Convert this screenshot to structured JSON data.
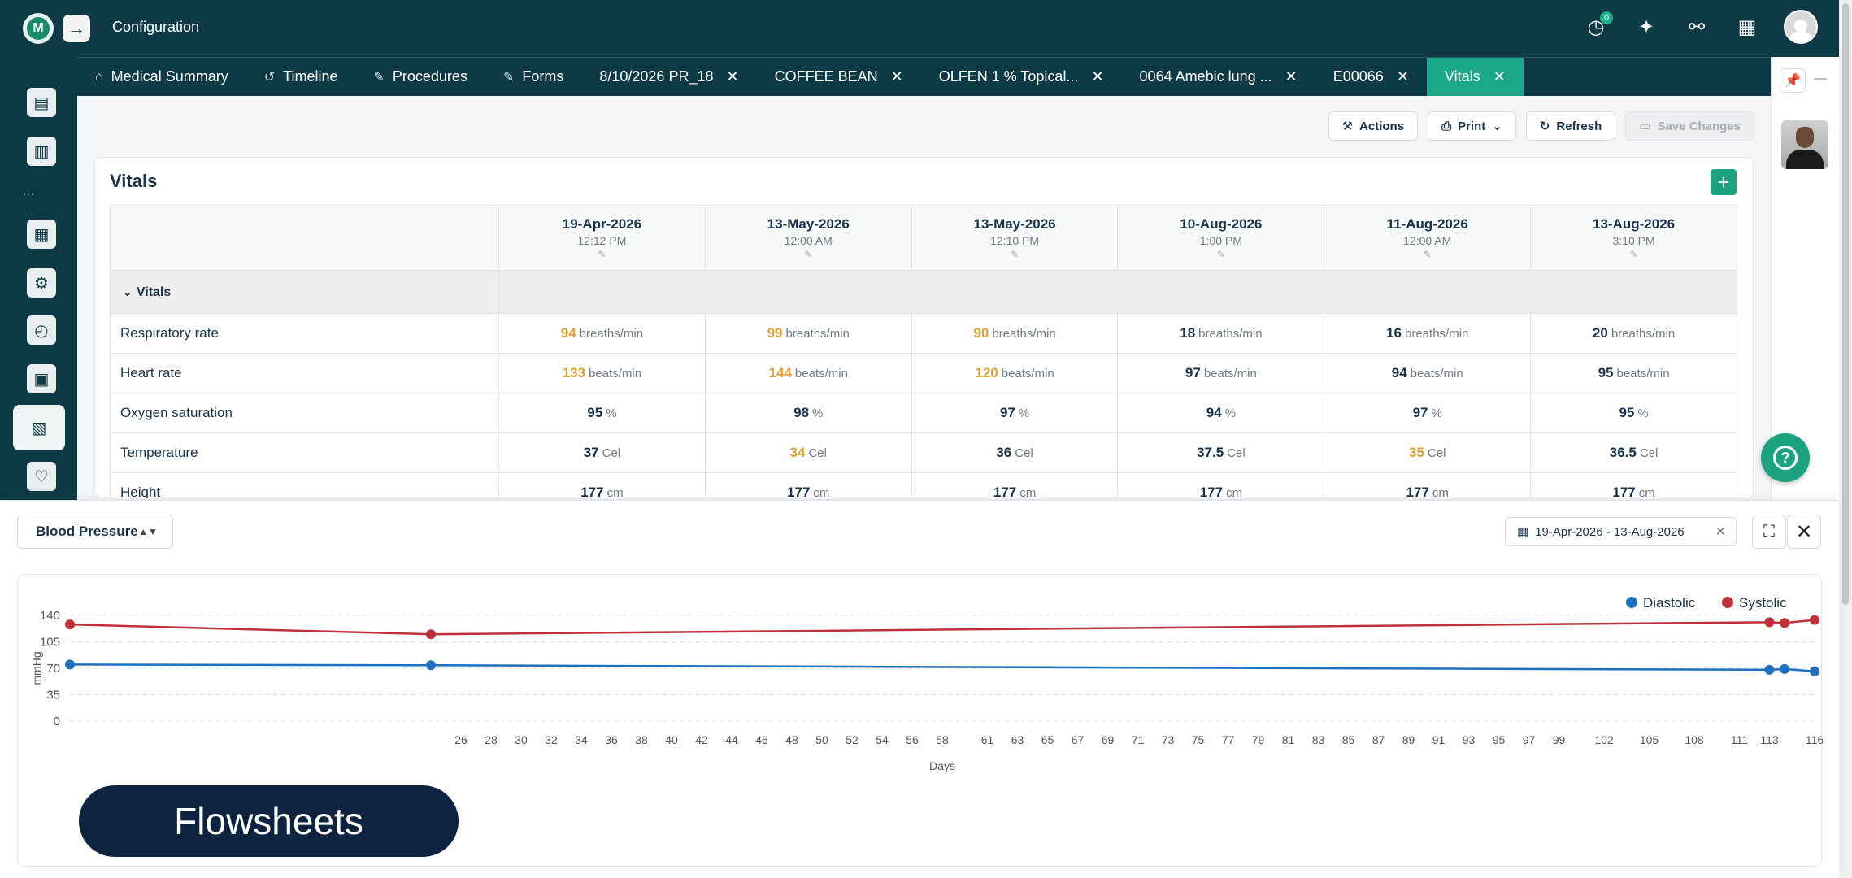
{
  "app": {
    "title": "Configuration",
    "logo_letters": "M",
    "notification_count": "0"
  },
  "tabs": [
    {
      "label": "Medical Summary",
      "icon": "home-icon",
      "glyph": "⌂",
      "closable": false,
      "active": false
    },
    {
      "label": "Timeline",
      "icon": "history-icon",
      "glyph": "↺",
      "closable": false,
      "active": false
    },
    {
      "label": "Procedures",
      "icon": "pencil-icon",
      "glyph": "✎",
      "closable": false,
      "active": false
    },
    {
      "label": "Forms",
      "icon": "pencil-icon",
      "glyph": "✎",
      "closable": false,
      "active": false
    },
    {
      "label": "8/10/2026 PR_18",
      "closable": true,
      "active": false
    },
    {
      "label": "COFFEE BEAN",
      "closable": true,
      "active": false
    },
    {
      "label": "OLFEN 1 % Topical...",
      "closable": true,
      "active": false
    },
    {
      "label": "0064 Amebic lung ...",
      "closable": true,
      "active": false
    },
    {
      "label": "E00066",
      "closable": true,
      "active": false
    },
    {
      "label": "Vitals",
      "closable": true,
      "active": true
    }
  ],
  "toolbar": {
    "actions_label": "Actions",
    "print_label": "Print",
    "refresh_label": "Refresh",
    "save_label": "Save Changes"
  },
  "vitals": {
    "title": "Vitals",
    "section_label": "Vitals",
    "columns": [
      {
        "date": "19-Apr-2026",
        "time": "12:12 PM"
      },
      {
        "date": "13-May-2026",
        "time": "12:00 AM"
      },
      {
        "date": "13-May-2026",
        "time": "12:10 PM"
      },
      {
        "date": "10-Aug-2026",
        "time": "1:00 PM"
      },
      {
        "date": "11-Aug-2026",
        "time": "12:00 AM"
      },
      {
        "date": "13-Aug-2026",
        "time": "3:10 PM"
      }
    ],
    "rows": [
      {
        "label": "Respiratory rate",
        "unit": "breaths/min",
        "values": [
          "94",
          "99",
          "90",
          "18",
          "16",
          "20"
        ],
        "flags": [
          true,
          true,
          true,
          false,
          false,
          false
        ]
      },
      {
        "label": "Heart rate",
        "unit": "beats/min",
        "values": [
          "133",
          "144",
          "120",
          "97",
          "94",
          "95"
        ],
        "flags": [
          true,
          true,
          true,
          false,
          false,
          false
        ]
      },
      {
        "label": "Oxygen saturation",
        "unit": "%",
        "values": [
          "95",
          "98",
          "97",
          "94",
          "97",
          "95"
        ],
        "flags": [
          false,
          false,
          false,
          false,
          false,
          false
        ]
      },
      {
        "label": "Temperature",
        "unit": "Cel",
        "values": [
          "37",
          "34",
          "36",
          "37.5",
          "35",
          "36.5"
        ],
        "flags": [
          false,
          true,
          false,
          false,
          true,
          false
        ]
      },
      {
        "label": "Height",
        "unit": "cm",
        "values": [
          "177",
          "177",
          "177",
          "177",
          "177",
          "177"
        ],
        "flags": [
          false,
          false,
          false,
          false,
          false,
          false
        ]
      }
    ],
    "warn_color": "#e0a030"
  },
  "chart_panel": {
    "selector_label": "Blood Pressure",
    "date_range": "19-Apr-2026 - 13-Aug-2026"
  },
  "chart_data": {
    "type": "line",
    "xlabel": "Days",
    "ylabel": "mmHg",
    "ylim": [
      0,
      140
    ],
    "yticks": [
      0,
      35,
      70,
      105,
      140
    ],
    "xlim": [
      0,
      116
    ],
    "xticks": [
      26,
      28,
      30,
      32,
      34,
      36,
      38,
      40,
      42,
      44,
      46,
      48,
      50,
      52,
      54,
      56,
      58,
      61,
      63,
      65,
      67,
      69,
      71,
      73,
      75,
      77,
      79,
      81,
      83,
      85,
      87,
      89,
      91,
      93,
      95,
      97,
      99,
      102,
      105,
      108,
      111,
      113,
      116
    ],
    "legend_position": "top-right",
    "series": [
      {
        "name": "Diastolic",
        "color": "#1f6fbf",
        "points": [
          [
            0,
            75
          ],
          [
            24,
            74
          ],
          [
            113,
            68
          ],
          [
            114,
            69
          ],
          [
            116,
            66
          ]
        ]
      },
      {
        "name": "Systolic",
        "color": "#c0303a",
        "points": [
          [
            0,
            128
          ],
          [
            24,
            115
          ],
          [
            113,
            131
          ],
          [
            114,
            130
          ],
          [
            116,
            134
          ]
        ]
      }
    ]
  },
  "overlay": {
    "label": "Flowsheets"
  }
}
